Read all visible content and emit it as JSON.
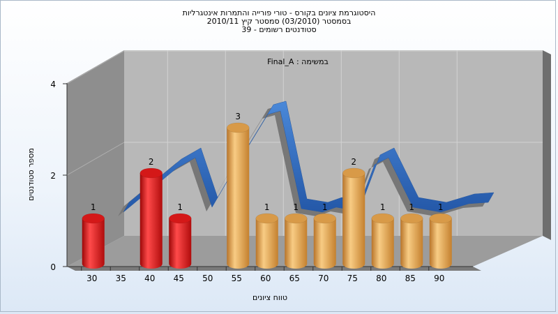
{
  "header": {
    "title_line1": "היסטוגרמת ציונים בקורס - טורי פורייה והתמרות אינטגרליות",
    "title_line2": "בסמסטר  (03/2010)  סמסטר קיץ  2010/11",
    "title_line3": "סטודנטים רשומים - 39"
  },
  "chart_data": {
    "type": "bar",
    "annotation": "במשימה : Final_A",
    "xlabel": "טווח ציונים",
    "ylabel": "מספר סטודנטים",
    "x_ticks": [
      "30",
      "35",
      "40",
      "45",
      "50",
      "55",
      "60",
      "65",
      "70",
      "75",
      "80",
      "85",
      "90"
    ],
    "y_ticks": [
      "0",
      "2",
      "4"
    ],
    "ylim": [
      0,
      4
    ],
    "bars": [
      {
        "x": 30,
        "value": 1,
        "color": "red"
      },
      {
        "x": 40,
        "value": 2,
        "color": "red"
      },
      {
        "x": 45,
        "value": 1,
        "color": "red"
      },
      {
        "x": 55,
        "value": 3,
        "color": "orange"
      },
      {
        "x": 60,
        "value": 1,
        "color": "orange"
      },
      {
        "x": 65,
        "value": 1,
        "color": "orange"
      },
      {
        "x": 70,
        "value": 1,
        "color": "orange"
      },
      {
        "x": 75,
        "value": 2,
        "color": "orange"
      },
      {
        "x": 80,
        "value": 1,
        "color": "orange"
      },
      {
        "x": 85,
        "value": 1,
        "color": "orange"
      },
      {
        "x": 90,
        "value": 1,
        "color": "orange"
      }
    ],
    "trend_curve": {
      "color": "#3068b8"
    },
    "colors": {
      "red": "#e02020",
      "orange": "#e8a040",
      "back_wall": "#b8b8b8",
      "side_wall": "#8a8a8a",
      "floor": "#9a9a9a"
    },
    "grid": true
  }
}
